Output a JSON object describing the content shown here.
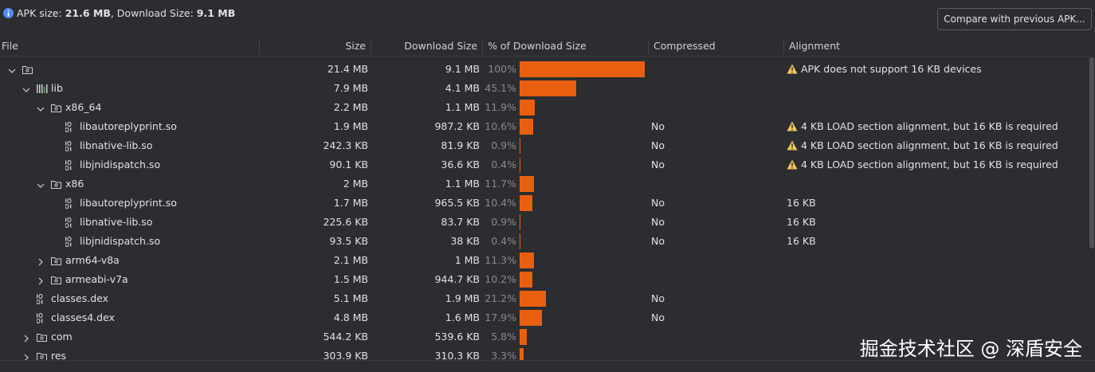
{
  "header": {
    "apk_size_label": "APK size:",
    "apk_size": "21.6 MB",
    "download_size_label": ", Download Size:",
    "download_size": "9.1 MB"
  },
  "button": "Compare with previous APK...",
  "columns": [
    "File",
    "Size",
    "Download Size",
    "% of Download Size",
    "Compressed",
    "Alignment"
  ],
  "rows": [
    {
      "depth": 0,
      "kind": "folder",
      "expanded": true,
      "size": "21.4 MB",
      "download": "9.1 MB",
      "pct": 100,
      "pct_label": "100%",
      "alignment": "APK does not support 16 KB devices",
      "warning": true
    },
    {
      "depth": 1,
      "kind": "lib",
      "expanded": true,
      "name": "lib",
      "size": "7.9 MB",
      "download": "4.1 MB",
      "pct": 45.1,
      "pct_label": "45.1%"
    },
    {
      "depth": 2,
      "kind": "folder",
      "expanded": true,
      "name": "x86_64",
      "size": "2.2 MB",
      "download": "1.1 MB",
      "pct": 11.9,
      "pct_label": "11.9%"
    },
    {
      "depth": 3,
      "kind": "file",
      "name": "libautoreplyprint.so",
      "size": "1.9 MB",
      "download": "987.2 KB",
      "pct": 10.6,
      "pct_label": "10.6%",
      "compressed": "No",
      "alignment": "4 KB LOAD section alignment, but 16 KB is required",
      "warning": true
    },
    {
      "depth": 3,
      "kind": "file",
      "name": "libnative-lib.so",
      "size": "242.3 KB",
      "download": "81.9 KB",
      "pct": 0.9,
      "pct_label": "0.9%",
      "compressed": "No",
      "alignment": "4 KB LOAD section alignment, but 16 KB is required",
      "warning": true
    },
    {
      "depth": 3,
      "kind": "file",
      "name": "libjnidispatch.so",
      "size": "90.1 KB",
      "download": "36.6 KB",
      "pct": 0.4,
      "pct_label": "0.4%",
      "compressed": "No",
      "alignment": "4 KB LOAD section alignment, but 16 KB is required",
      "warning": true
    },
    {
      "depth": 2,
      "kind": "folder",
      "expanded": true,
      "name": "x86",
      "size": "2 MB",
      "download": "1.1 MB",
      "pct": 11.7,
      "pct_label": "11.7%"
    },
    {
      "depth": 3,
      "kind": "file",
      "name": "libautoreplyprint.so",
      "size": "1.7 MB",
      "download": "965.5 KB",
      "pct": 10.4,
      "pct_label": "10.4%",
      "compressed": "No",
      "alignment": "16 KB"
    },
    {
      "depth": 3,
      "kind": "file",
      "name": "libnative-lib.so",
      "size": "225.6 KB",
      "download": "83.7 KB",
      "pct": 0.9,
      "pct_label": "0.9%",
      "compressed": "No",
      "alignment": "16 KB"
    },
    {
      "depth": 3,
      "kind": "file",
      "name": "libjnidispatch.so",
      "size": "93.5 KB",
      "download": "38 KB",
      "pct": 0.4,
      "pct_label": "0.4%",
      "compressed": "No",
      "alignment": "16 KB"
    },
    {
      "depth": 2,
      "kind": "folder",
      "expanded": false,
      "name": "arm64-v8a",
      "size": "2.1 MB",
      "download": "1 MB",
      "pct": 11.3,
      "pct_label": "11.3%"
    },
    {
      "depth": 2,
      "kind": "folder",
      "expanded": false,
      "name": "armeabi-v7a",
      "size": "1.5 MB",
      "download": "944.7 KB",
      "pct": 10.2,
      "pct_label": "10.2%"
    },
    {
      "depth": 1,
      "kind": "file",
      "name": "classes.dex",
      "size": "5.1 MB",
      "download": "1.9 MB",
      "pct": 21.2,
      "pct_label": "21.2%",
      "compressed": "No"
    },
    {
      "depth": 1,
      "kind": "file",
      "name": "classes4.dex",
      "size": "4.8 MB",
      "download": "1.6 MB",
      "pct": 17.9,
      "pct_label": "17.9%",
      "compressed": "No"
    },
    {
      "depth": 1,
      "kind": "folder",
      "expanded": false,
      "name": "com",
      "size": "544.2 KB",
      "download": "539.6 KB",
      "pct": 5.8,
      "pct_label": "5.8%"
    },
    {
      "depth": 1,
      "kind": "folder",
      "expanded": false,
      "name": "res",
      "size": "303.9 KB",
      "download": "310.3 KB",
      "pct": 3.3,
      "pct_label": "3.3%"
    }
  ],
  "watermark": "掘金技术社区 @ 深盾安全"
}
